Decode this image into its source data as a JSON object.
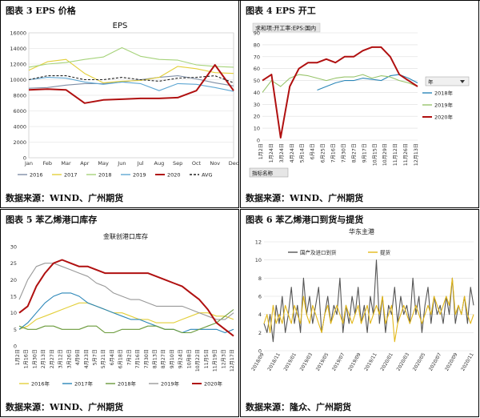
{
  "panels": [
    {
      "title": "图表 3 EPS 价格",
      "source": "数据来源：WIND、广州期货",
      "chart_data": {
        "type": "line",
        "title": "EPS",
        "x": [
          "Jan",
          "Feb",
          "Mar",
          "Apr",
          "May",
          "Jun",
          "Jul",
          "Aug",
          "Sep",
          "Oct",
          "Nov",
          "Dec"
        ],
        "ylim": [
          0,
          16000
        ],
        "yticks": [
          "0",
          "2000",
          "4000",
          "6000",
          "8000",
          "10000",
          "12000",
          "14000",
          "16000"
        ],
        "legend": "bottom",
        "series": [
          {
            "name": "2016",
            "color": "#7f8fa6",
            "values": [
              8900,
              9000,
              9300,
              9500,
              9500,
              9700,
              10000,
              10300,
              10500,
              10100,
              9600,
              9200
            ]
          },
          {
            "name": "2017",
            "color": "#e3cf3a",
            "values": [
              11200,
              12300,
              12600,
              10800,
              9600,
              9800,
              9900,
              10300,
              11700,
              11400,
              10900,
              10800
            ]
          },
          {
            "name": "2018",
            "color": "#a6d37a",
            "values": [
              11600,
              12000,
              12200,
              12600,
              12900,
              14100,
              13000,
              12600,
              12500,
              11900,
              11700,
              11600
            ]
          },
          {
            "name": "2019",
            "color": "#5fa7d3",
            "values": [
              10000,
              10300,
              10200,
              9700,
              9400,
              9700,
              9500,
              8600,
              9500,
              9400,
              9000,
              8500
            ]
          },
          {
            "name": "2020",
            "color": "#b01010",
            "values": [
              8700,
              8800,
              8700,
              7000,
              7400,
              7500,
              7600,
              7600,
              7700,
              8600,
              11900,
              8600
            ]
          },
          {
            "name": "AVG",
            "color": "#222222",
            "dashed": true,
            "values": [
              10000,
              10500,
              10500,
              10000,
              10000,
              10300,
              10000,
              9800,
              10200,
              10300,
              10500,
              9600
            ]
          }
        ]
      }
    },
    {
      "title": "图表 4 EPS 开工",
      "source": "数据来源：WIND、广州期货",
      "chart_data": {
        "type": "line",
        "title": "求和项:开工率:EPS:国内",
        "x": [
          "1月2日",
          "1月24日",
          "2月24日",
          "3月24日",
          "4月24日",
          "5月14日",
          "6月4日",
          "6月25日",
          "7月16日",
          "7月30日",
          "8月27日",
          "9月17日",
          "10月15日",
          "10月29日",
          "11月12日",
          "11月26日",
          "12月10日",
          "12月31日"
        ],
        "xticks": [
          "1月2日",
          "1月24日",
          "3月24日",
          "4月24日",
          "5月14日",
          "6月4日",
          "6月25日",
          "7月16日",
          "7月30日",
          "8月27日",
          "9月17日",
          "10月15日",
          "10月29日",
          "11月12日",
          "11月26日",
          "12月13日"
        ],
        "ylim": [
          0,
          90
        ],
        "yticks": [
          "0",
          "10",
          "20",
          "30",
          "40",
          "50",
          "60",
          "70",
          "80",
          "90"
        ],
        "field_button": "指标名称",
        "filter_label": "年",
        "legend": "right",
        "series": [
          {
            "name": "2018年",
            "color": "#2a86b8",
            "values": [
              null,
              null,
              null,
              null,
              null,
              null,
              42,
              45,
              48,
              50,
              50,
              52,
              51,
              50,
              54,
              55,
              52,
              48
            ]
          },
          {
            "name": "2019年",
            "color": "#98c46b",
            "values": [
              40,
              50,
              45,
              52,
              55,
              54,
              52,
              50,
              52,
              53,
              53,
              55,
              52,
              54,
              53,
              50,
              48,
              45
            ]
          },
          {
            "name": "2020年",
            "color": "#b01010",
            "values": [
              50,
              55,
              2,
              45,
              60,
              65,
              65,
              68,
              65,
              70,
              70,
              75,
              78,
              78,
              70,
              55,
              50,
              45
            ]
          }
        ]
      }
    },
    {
      "title": "图表 5 苯乙烯港口库存",
      "source": "数据来源：WIND、广州期货",
      "chart_data": {
        "type": "line",
        "title": "金联创港口库存",
        "x": [
          "1月2日",
          "1月16日",
          "1月30日",
          "2月13日",
          "2月27日",
          "3月12日",
          "3月26日",
          "4月9日",
          "4月23日",
          "5月7日",
          "5月21日",
          "6月4日",
          "6月18日",
          "7月2日",
          "7月16日",
          "7月30日",
          "8月13日",
          "8月27日",
          "9月10日",
          "9月24日",
          "10月8日",
          "10月22日",
          "11月5日",
          "11月19日",
          "12月3日",
          "12月17日"
        ],
        "xticks": [
          "1月2日",
          "1月16日",
          "1月30日",
          "2月13日",
          "2月27日",
          "3月12日",
          "3月26日",
          "4月9日",
          "4月23日",
          "5月7日",
          "5月21日",
          "6月4日",
          "6月18日",
          "7月2日",
          "7月16日",
          "7月30日",
          "8月13日",
          "8月27日",
          "9月10日",
          "9月24日",
          "10月8日",
          "10月22日",
          "11月5日",
          "11月19日",
          "12月3日",
          "12月17日"
        ],
        "ylim": [
          0,
          30
        ],
        "yticks": [
          "0",
          "5",
          "10",
          "15",
          "20",
          "25",
          "30"
        ],
        "legend": "bottom",
        "series": [
          {
            "name": "2016年",
            "color": "#e3cf3a",
            "values": [
              5,
              6,
              8,
              9,
              10,
              11,
              12,
              13,
              13,
              12,
              11,
              10,
              10,
              9,
              8,
              8,
              7,
              7,
              7,
              8,
              9,
              10,
              10,
              9,
              9,
              8
            ]
          },
          {
            "name": "2017年",
            "color": "#2a86b8",
            "values": [
              5,
              7,
              10,
              13,
              15,
              16,
              16,
              15,
              13,
              12,
              11,
              10,
              9,
              8,
              8,
              7,
              6,
              5,
              5,
              4,
              5,
              5,
              5,
              5,
              4,
              5
            ]
          },
          {
            "name": "2018年",
            "color": "#6a9a3a",
            "values": [
              6,
              5,
              5,
              6,
              6,
              5,
              5,
              5,
              6,
              6,
              4,
              4,
              5,
              5,
              5,
              6,
              6,
              5,
              5,
              4,
              4,
              5,
              6,
              7,
              9,
              11
            ]
          },
          {
            "name": "2019年",
            "color": "#999999",
            "values": [
              14,
              20,
              24,
              25,
              25,
              24,
              23,
              22,
              21,
              19,
              18,
              16,
              15,
              14,
              14,
              13,
              12,
              12,
              12,
              12,
              11,
              10,
              9,
              8,
              8,
              10
            ]
          },
          {
            "name": "2020年",
            "color": "#b01010",
            "values": [
              10,
              12,
              18,
              22,
              25,
              26,
              25,
              24,
              24,
              23,
              22,
              22,
              22,
              22,
              22,
              22,
              21,
              20,
              19,
              18,
              16,
              14,
              11,
              7,
              5,
              3
            ]
          }
        ]
      }
    },
    {
      "title": "图表 6 苯乙烯港口到货与提货",
      "source": "数据来源：隆众、广州期货",
      "chart_data": {
        "type": "line",
        "title": "华东主港",
        "xticks": [
          "2018/09",
          "2018/11",
          "2019/01",
          "2019/03",
          "2019/05",
          "2019/07",
          "2019/09",
          "2019/11",
          "2020/01",
          "2020/03",
          "2020/05",
          "2020/07",
          "2020/09",
          "2020/11"
        ],
        "ylim": [
          0,
          12
        ],
        "yticks": [
          "0",
          "2",
          "4",
          "6",
          "8",
          "10",
          "12"
        ],
        "legend": "top",
        "series": [
          {
            "name": "国产及进口到货",
            "color": "#555555",
            "values": [
              3,
              2,
              4,
              1,
              5,
              3,
              6,
              2,
              4,
              7,
              3,
              5,
              2,
              8,
              4,
              6,
              3,
              5,
              7,
              2,
              4,
              6,
              3,
              5,
              4,
              8,
              2,
              5,
              3,
              6,
              4,
              7,
              3,
              5,
              2,
              6,
              4,
              10,
              3,
              6,
              2,
              5,
              4,
              7,
              3,
              6,
              4,
              5,
              3,
              8,
              4,
              6,
              2,
              5,
              7,
              3,
              6,
              4,
              5,
              3,
              6,
              4,
              8,
              3,
              5,
              4,
              6,
              3,
              7,
              5
            ]
          },
          {
            "name": "提货",
            "color": "#e3b81a",
            "values": [
              3,
              4,
              2,
              5,
              3,
              4,
              3,
              5,
              4,
              3,
              5,
              4,
              3,
              6,
              4,
              3,
              5,
              4,
              3,
              2,
              4,
              5,
              3,
              4,
              5,
              4,
              3,
              5,
              4,
              3,
              4,
              5,
              3,
              4,
              5,
              3,
              4,
              5,
              4,
              6,
              3,
              4,
              5,
              1,
              3,
              4,
              5,
              4,
              3,
              4,
              5,
              4,
              3,
              4,
              5,
              4,
              6,
              5,
              4,
              5,
              6,
              5,
              8,
              4,
              5,
              4,
              6,
              4,
              3,
              4
            ]
          }
        ]
      }
    }
  ]
}
